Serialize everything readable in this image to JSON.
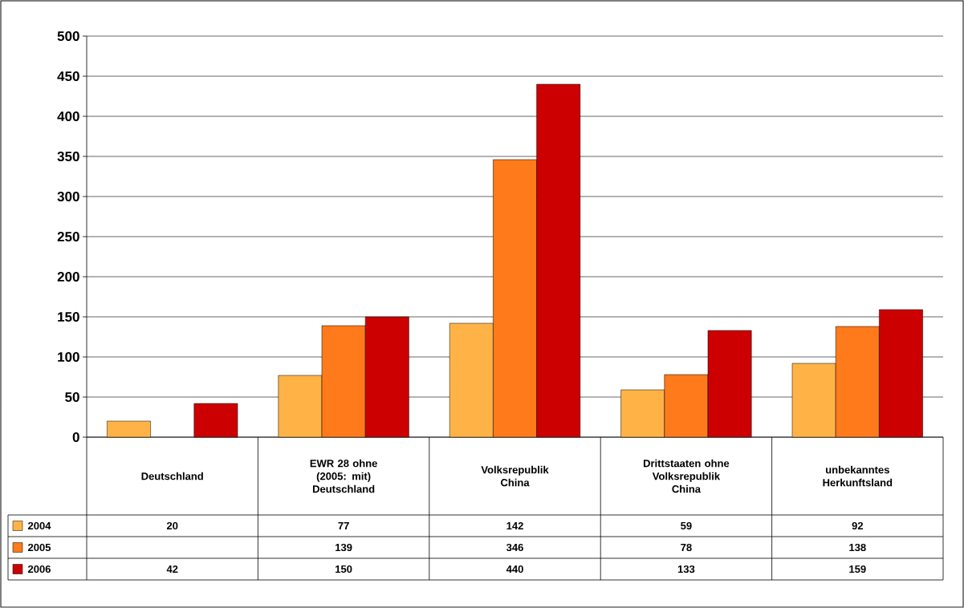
{
  "chart_data": {
    "type": "bar",
    "categories": [
      "Deutschland",
      "EWR 28 ohne (2005: mit) Deutschland",
      "Volksrepublik China",
      "Drittstaaten ohne Volksrepublik China",
      "unbekanntes Herkunftsland"
    ],
    "series": [
      {
        "name": "2004",
        "color": "#ffb347",
        "values": [
          20,
          77,
          142,
          59,
          92
        ]
      },
      {
        "name": "2005",
        "color": "#ff7a1a",
        "values": [
          null,
          139,
          346,
          78,
          138
        ]
      },
      {
        "name": "2006",
        "color": "#cc0000",
        "values": [
          42,
          150,
          440,
          133,
          159
        ]
      }
    ],
    "ylim": [
      0,
      500
    ],
    "yticks": [
      0,
      50,
      100,
      150,
      200,
      250,
      300,
      350,
      400,
      450,
      500
    ],
    "grid": "y",
    "data_labels": true,
    "legend": "bottom left"
  }
}
